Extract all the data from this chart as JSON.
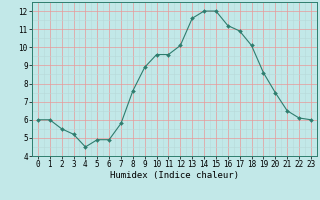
{
  "x": [
    0,
    1,
    2,
    3,
    4,
    5,
    6,
    7,
    8,
    9,
    10,
    11,
    12,
    13,
    14,
    15,
    16,
    17,
    18,
    19,
    20,
    21,
    22,
    23
  ],
  "y": [
    6.0,
    6.0,
    5.5,
    5.2,
    4.5,
    4.9,
    4.9,
    5.8,
    7.6,
    8.9,
    9.6,
    9.6,
    10.1,
    11.6,
    12.0,
    12.0,
    11.2,
    10.9,
    10.1,
    8.6,
    7.5,
    6.5,
    6.1,
    6.0
  ],
  "line_color": "#2e7d6e",
  "marker": "D",
  "marker_size": 2,
  "bg_color": "#c2e8e8",
  "grid_major_color": "#e89898",
  "grid_minor_color": "#b8d8d8",
  "xlabel": "Humidex (Indice chaleur)",
  "xlim": [
    -0.5,
    23.5
  ],
  "ylim": [
    4,
    12.5
  ],
  "yticks": [
    4,
    5,
    6,
    7,
    8,
    9,
    10,
    11,
    12
  ],
  "xticks": [
    0,
    1,
    2,
    3,
    4,
    5,
    6,
    7,
    8,
    9,
    10,
    11,
    12,
    13,
    14,
    15,
    16,
    17,
    18,
    19,
    20,
    21,
    22,
    23
  ],
  "tick_fontsize": 5.5,
  "label_fontsize": 6.5
}
